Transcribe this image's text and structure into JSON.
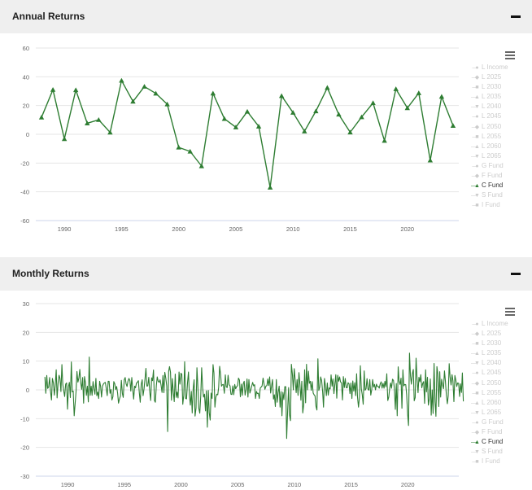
{
  "colors": {
    "series": "#2e7d32",
    "inactive": "#cccccc",
    "grid": "#e6e6e6",
    "axis": "#ccd6eb"
  },
  "panels": [
    {
      "title": "Annual Returns",
      "collapse_icon": "minus-icon",
      "menu_icon": "hamburger-menu-icon",
      "legend": [
        {
          "label": "L Income",
          "symbol": "●",
          "active": false
        },
        {
          "label": "L 2025",
          "symbol": "◆",
          "active": false
        },
        {
          "label": "L 2030",
          "symbol": "■",
          "active": false
        },
        {
          "label": "L 2035",
          "symbol": "▲",
          "active": false
        },
        {
          "label": "L 2040",
          "symbol": "▼",
          "active": false
        },
        {
          "label": "L 2045",
          "symbol": "●",
          "active": false
        },
        {
          "label": "L 2050",
          "symbol": "◆",
          "active": false
        },
        {
          "label": "L 2055",
          "symbol": "■",
          "active": false
        },
        {
          "label": "L 2060",
          "symbol": "▲",
          "active": false
        },
        {
          "label": "L 2065",
          "symbol": "▼",
          "active": false
        },
        {
          "label": "G Fund",
          "symbol": "●",
          "active": false
        },
        {
          "label": "F Fund",
          "symbol": "◆",
          "active": false
        },
        {
          "label": "C Fund",
          "symbol": "▲",
          "active": true
        },
        {
          "label": "S Fund",
          "symbol": "▼",
          "active": false
        },
        {
          "label": "I Fund",
          "symbol": "■",
          "active": false
        }
      ]
    },
    {
      "title": "Monthly Returns",
      "collapse_icon": "minus-icon",
      "menu_icon": "hamburger-menu-icon",
      "legend": [
        {
          "label": "L Income",
          "symbol": "●",
          "active": false
        },
        {
          "label": "L 2025",
          "symbol": "◆",
          "active": false
        },
        {
          "label": "L 2030",
          "symbol": "■",
          "active": false
        },
        {
          "label": "L 2035",
          "symbol": "▲",
          "active": false
        },
        {
          "label": "L 2040",
          "symbol": "▼",
          "active": false
        },
        {
          "label": "L 2045",
          "symbol": "●",
          "active": false
        },
        {
          "label": "L 2050",
          "symbol": "◆",
          "active": false
        },
        {
          "label": "L 2055",
          "symbol": "■",
          "active": false
        },
        {
          "label": "L 2060",
          "symbol": "▲",
          "active": false
        },
        {
          "label": "L 2065",
          "symbol": "▼",
          "active": false
        },
        {
          "label": "G Fund",
          "symbol": "●",
          "active": false
        },
        {
          "label": "F Fund",
          "symbol": "◆",
          "active": false
        },
        {
          "label": "C Fund",
          "symbol": "▲",
          "active": true
        },
        {
          "label": "S Fund",
          "symbol": "▼",
          "active": false
        },
        {
          "label": "I Fund",
          "symbol": "■",
          "active": false
        }
      ]
    }
  ],
  "chart_data": [
    {
      "type": "line",
      "title": "Annual Returns",
      "xlim": [
        1987.5,
        2024.5
      ],
      "ylim": [
        -60,
        60
      ],
      "yticks": [
        -60,
        -40,
        -20,
        0,
        20,
        40,
        60
      ],
      "xticks": [
        1990,
        1995,
        2000,
        2005,
        2010,
        2015,
        2020
      ],
      "grid": true,
      "legend_position": "right",
      "series": [
        {
          "name": "C Fund",
          "x": [
            1988,
            1989,
            1990,
            1991,
            1992,
            1993,
            1994,
            1995,
            1996,
            1997,
            1998,
            1999,
            2000,
            2001,
            2002,
            2003,
            2004,
            2005,
            2006,
            2007,
            2008,
            2009,
            2010,
            2011,
            2012,
            2013,
            2014,
            2015,
            2016,
            2017,
            2018,
            2019,
            2020,
            2021,
            2022,
            2023,
            2024
          ],
          "values": [
            11.8,
            31.0,
            -3.2,
            30.8,
            7.7,
            10.1,
            1.3,
            37.4,
            22.8,
            33.2,
            28.4,
            20.9,
            -9.1,
            -11.9,
            -22.1,
            28.5,
            10.8,
            4.9,
            15.8,
            5.5,
            -37.0,
            26.7,
            15.1,
            2.1,
            16.1,
            32.4,
            13.8,
            1.4,
            12.0,
            21.8,
            -4.4,
            31.5,
            18.3,
            28.7,
            -18.1,
            26.2,
            6.0
          ]
        }
      ]
    },
    {
      "type": "line",
      "title": "Monthly Returns",
      "xlim": [
        1987.2,
        2024.5
      ],
      "ylim": [
        -30,
        30
      ],
      "yticks": [
        -30,
        -20,
        -10,
        0,
        10,
        20,
        30
      ],
      "xticks": [
        1990,
        1995,
        2000,
        2005,
        2010,
        2015,
        2020
      ],
      "grid": true,
      "legend_position": "right",
      "series": [
        {
          "name": "C Fund",
          "x_start": 1988.0,
          "x_step": 0.0833,
          "values": [
            4.5,
            -1.2,
            5.0,
            0.5,
            1.0,
            4.3,
            -0.5,
            -3.5,
            4.0,
            2.5,
            -1.8,
            1.6,
            7.0,
            -2.8,
            2.3,
            5.1,
            4.0,
            -0.6,
            8.8,
            1.9,
            -0.4,
            -2.3,
            2.0,
            2.4,
            -6.7,
            1.2,
            2.6,
            -2.7,
            9.7,
            -0.7,
            -0.4,
            -9.0,
            -5.0,
            -0.5,
            6.4,
            2.7,
            4.2,
            7.1,
            2.4,
            0.2,
            4.3,
            -4.6,
            4.6,
            2.4,
            -1.9,
            1.3,
            -4.2,
            11.4,
            -1.9,
            1.3,
            -1.9,
            2.9,
            0.5,
            -1.5,
            4.0,
            -2.0,
            -0.7,
            -3.0,
            3.0,
            1.2,
            -2.5,
            1.3,
            2.1,
            2.4,
            2.6,
            0.5,
            -2.0,
            3.0,
            3.0,
            -1.2,
            0.1,
            -3.5,
            -2.4,
            2.9,
            2.1,
            0.1,
            1.2,
            -1.2,
            -4.6,
            -3.1,
            -2.1,
            3.3,
            -1.2,
            -2.6,
            3.5,
            4.3,
            2.1,
            1.2,
            3.0,
            4.0,
            3.2,
            -0.4,
            4.3,
            0.1,
            -3.2,
            1.3,
            0.7,
            2.4,
            2.7,
            3.2,
            -1.1,
            -4.3,
            1.9,
            3.5,
            -2.0,
            0.4,
            3.6,
            7.5,
            1.3,
            1.4,
            4.4,
            -0.7,
            -3.7,
            4.2,
            3.2,
            6.9,
            -3.7,
            -4.3,
            1.5,
            4.5,
            3.0,
            2.6,
            3.5,
            1.6,
            -0.9,
            5.0,
            -1.0,
            6.1,
            4.1,
            1.3,
            -14.5,
            6.4,
            8.1,
            6.1,
            -3.6,
            3.9,
            -0.9,
            -4.1,
            5.5,
            -2.6,
            -0.7,
            -2.8,
            6.2,
            2.0,
            5.8,
            5.4,
            -5.0,
            -1.9,
            9.8,
            -3.0,
            -3.1,
            2.4,
            6.2,
            -1.6,
            -5.3,
            -0.5,
            -8.0,
            0.5,
            3.5,
            -9.1,
            -6.3,
            7.7,
            0.9,
            -6.4,
            -8.1,
            -2.0,
            7.7,
            0.8,
            -2.5,
            -1.5,
            -7.3,
            -0.3,
            -13.0,
            -0.2,
            -7.9,
            -10.5,
            -1.1,
            -3.0,
            8.8,
            5.9,
            -6.0,
            -2.6,
            -1.5,
            -1.7,
            0.9,
            8.2,
            5.3,
            1.3,
            1.8,
            1.9,
            -1.2,
            5.2,
            1.1,
            0.8,
            5.1,
            1.8,
            1.4,
            -1.5,
            -1.6,
            1.4,
            -1.7,
            1.9,
            0.4,
            1.1,
            1.5,
            4.1,
            3.4,
            -2.4,
            2.0,
            -1.9,
            2.1,
            3.0,
            -1.8,
            0.1,
            3.8,
            -2.5,
            3.6,
            -1.1,
            0.0,
            1.4,
            2.6,
            1.4,
            1.8,
            -3.0,
            -0.5,
            -1.3,
            -1.2,
            -3.0,
            0.6,
            1.0,
            1.4,
            4.1,
            2.0,
            0.2,
            1.3,
            1.5,
            3.8,
            1.5,
            4.5,
            -1.1,
            1.5,
            3.6,
            -3.2,
            -1.7,
            -5.8,
            3.6,
            -4.3,
            -0.8,
            1.3,
            -6.0,
            -0.6,
            -9.0,
            -0.8,
            -3.4,
            1.1,
            1.1,
            -16.9,
            -7.2,
            0.8,
            -8.6,
            -10.7,
            8.9,
            5.6,
            0.0,
            7.4,
            3.4,
            -1.0,
            3.6,
            -1.9,
            6.0,
            1.9,
            -3.6,
            3.0,
            -8.0,
            -5.2,
            7.0,
            -4.5,
            8.9,
            0.0,
            6.5,
            2.3,
            3.0,
            -0.1,
            2.9,
            -1.1,
            -1.7,
            -2.1,
            -5.7,
            -7.0,
            10.8,
            -0.2,
            1.0,
            4.5,
            3.2,
            -0.6,
            -6.0,
            4.0,
            1.3,
            -2.0,
            2.4,
            -1.8,
            0.7,
            0.3,
            5.2,
            1.3,
            3.8,
            -1.3,
            2.1,
            5.3,
            -2.9,
            5.1,
            3.0,
            4.5,
            2.8,
            2.4,
            -3.5,
            4.6,
            0.8,
            4.0,
            0.8,
            0.7,
            2.5,
            2.1,
            -1.3,
            2.4,
            -3.0,
            3.1,
            -0.4,
            2.5,
            -2.0,
            5.6,
            -2.5,
            -6.0,
            -2.5,
            8.4,
            0.3,
            -1.6,
            -5.0,
            6.6,
            -0.1,
            0.4,
            3.9,
            0.3,
            -0.1,
            3.6,
            -1.8,
            0.1,
            3.6,
            1.0,
            1.9,
            0.0,
            2.0,
            1.2,
            1.2,
            0.6,
            2.1,
            2.8,
            0.6,
            2.3,
            0.6,
            3.0,
            1.1,
            5.6,
            -3.7,
            -2.5,
            0.4,
            2.4,
            0.6,
            3.7,
            3.3,
            0.6,
            -6.8,
            2.2,
            -9.0,
            8.0,
            3.1,
            1.9,
            4.1,
            -6.4,
            7.0,
            1.4,
            1.9,
            1.8,
            -1.6,
            -8.4,
            -12.4,
            12.8,
            4.8,
            2.0,
            5.6,
            7.1,
            -3.8,
            -2.7,
            11.0,
            3.8,
            -1.0,
            4.4,
            2.8,
            5.3,
            0.7,
            2.3,
            2.9,
            -4.7,
            7.0,
            -0.7,
            4.4,
            -5.3,
            -3.1,
            3.8,
            -8.8,
            0.0,
            -8.2,
            9.2,
            -4.1,
            -9.2,
            8.1,
            5.6,
            -5.8,
            6.3,
            -2.5,
            3.7,
            1.6,
            0.4,
            6.6,
            3.2,
            -1.6,
            -4.8,
            -2.1,
            9.1,
            4.5,
            1.7,
            5.3,
            3.2,
            -4.1,
            5.0,
            3.5,
            1.2,
            2.4,
            2.3,
            -2.3,
            2.1,
            -0.9,
            5.9,
            -4.0
          ]
        }
      ]
    }
  ]
}
